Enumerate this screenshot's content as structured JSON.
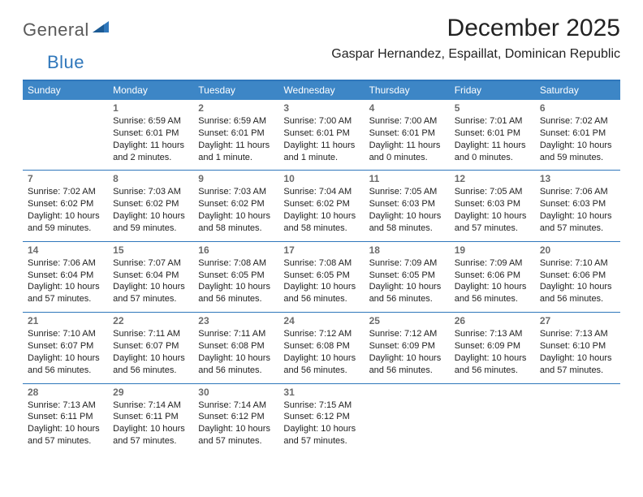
{
  "brand": {
    "word1": "General",
    "word2": "Blue"
  },
  "title": "December 2025",
  "location": "Gaspar Hernandez, Espaillat, Dominican Republic",
  "colors": {
    "header_bg": "#3d86c6",
    "header_text": "#ffffff",
    "rule": "#2f77bb",
    "daynum": "#6b6b6b",
    "body_text": "#222222",
    "logo_gray": "#5a5a5a",
    "logo_blue": "#2f77bb",
    "page_bg": "#ffffff"
  },
  "typography": {
    "month_title_pt": 30,
    "location_pt": 16,
    "dow_pt": 12,
    "daynum_pt": 12,
    "body_pt": 11,
    "logo_pt": 22
  },
  "days_of_week": [
    "Sunday",
    "Monday",
    "Tuesday",
    "Wednesday",
    "Thursday",
    "Friday",
    "Saturday"
  ],
  "weeks": [
    [
      null,
      {
        "n": "1",
        "sr": "Sunrise: 6:59 AM",
        "ss": "Sunset: 6:01 PM",
        "d1": "Daylight: 11 hours",
        "d2": "and 2 minutes."
      },
      {
        "n": "2",
        "sr": "Sunrise: 6:59 AM",
        "ss": "Sunset: 6:01 PM",
        "d1": "Daylight: 11 hours",
        "d2": "and 1 minute."
      },
      {
        "n": "3",
        "sr": "Sunrise: 7:00 AM",
        "ss": "Sunset: 6:01 PM",
        "d1": "Daylight: 11 hours",
        "d2": "and 1 minute."
      },
      {
        "n": "4",
        "sr": "Sunrise: 7:00 AM",
        "ss": "Sunset: 6:01 PM",
        "d1": "Daylight: 11 hours",
        "d2": "and 0 minutes."
      },
      {
        "n": "5",
        "sr": "Sunrise: 7:01 AM",
        "ss": "Sunset: 6:01 PM",
        "d1": "Daylight: 11 hours",
        "d2": "and 0 minutes."
      },
      {
        "n": "6",
        "sr": "Sunrise: 7:02 AM",
        "ss": "Sunset: 6:01 PM",
        "d1": "Daylight: 10 hours",
        "d2": "and 59 minutes."
      }
    ],
    [
      {
        "n": "7",
        "sr": "Sunrise: 7:02 AM",
        "ss": "Sunset: 6:02 PM",
        "d1": "Daylight: 10 hours",
        "d2": "and 59 minutes."
      },
      {
        "n": "8",
        "sr": "Sunrise: 7:03 AM",
        "ss": "Sunset: 6:02 PM",
        "d1": "Daylight: 10 hours",
        "d2": "and 59 minutes."
      },
      {
        "n": "9",
        "sr": "Sunrise: 7:03 AM",
        "ss": "Sunset: 6:02 PM",
        "d1": "Daylight: 10 hours",
        "d2": "and 58 minutes."
      },
      {
        "n": "10",
        "sr": "Sunrise: 7:04 AM",
        "ss": "Sunset: 6:02 PM",
        "d1": "Daylight: 10 hours",
        "d2": "and 58 minutes."
      },
      {
        "n": "11",
        "sr": "Sunrise: 7:05 AM",
        "ss": "Sunset: 6:03 PM",
        "d1": "Daylight: 10 hours",
        "d2": "and 58 minutes."
      },
      {
        "n": "12",
        "sr": "Sunrise: 7:05 AM",
        "ss": "Sunset: 6:03 PM",
        "d1": "Daylight: 10 hours",
        "d2": "and 57 minutes."
      },
      {
        "n": "13",
        "sr": "Sunrise: 7:06 AM",
        "ss": "Sunset: 6:03 PM",
        "d1": "Daylight: 10 hours",
        "d2": "and 57 minutes."
      }
    ],
    [
      {
        "n": "14",
        "sr": "Sunrise: 7:06 AM",
        "ss": "Sunset: 6:04 PM",
        "d1": "Daylight: 10 hours",
        "d2": "and 57 minutes."
      },
      {
        "n": "15",
        "sr": "Sunrise: 7:07 AM",
        "ss": "Sunset: 6:04 PM",
        "d1": "Daylight: 10 hours",
        "d2": "and 57 minutes."
      },
      {
        "n": "16",
        "sr": "Sunrise: 7:08 AM",
        "ss": "Sunset: 6:05 PM",
        "d1": "Daylight: 10 hours",
        "d2": "and 56 minutes."
      },
      {
        "n": "17",
        "sr": "Sunrise: 7:08 AM",
        "ss": "Sunset: 6:05 PM",
        "d1": "Daylight: 10 hours",
        "d2": "and 56 minutes."
      },
      {
        "n": "18",
        "sr": "Sunrise: 7:09 AM",
        "ss": "Sunset: 6:05 PM",
        "d1": "Daylight: 10 hours",
        "d2": "and 56 minutes."
      },
      {
        "n": "19",
        "sr": "Sunrise: 7:09 AM",
        "ss": "Sunset: 6:06 PM",
        "d1": "Daylight: 10 hours",
        "d2": "and 56 minutes."
      },
      {
        "n": "20",
        "sr": "Sunrise: 7:10 AM",
        "ss": "Sunset: 6:06 PM",
        "d1": "Daylight: 10 hours",
        "d2": "and 56 minutes."
      }
    ],
    [
      {
        "n": "21",
        "sr": "Sunrise: 7:10 AM",
        "ss": "Sunset: 6:07 PM",
        "d1": "Daylight: 10 hours",
        "d2": "and 56 minutes."
      },
      {
        "n": "22",
        "sr": "Sunrise: 7:11 AM",
        "ss": "Sunset: 6:07 PM",
        "d1": "Daylight: 10 hours",
        "d2": "and 56 minutes."
      },
      {
        "n": "23",
        "sr": "Sunrise: 7:11 AM",
        "ss": "Sunset: 6:08 PM",
        "d1": "Daylight: 10 hours",
        "d2": "and 56 minutes."
      },
      {
        "n": "24",
        "sr": "Sunrise: 7:12 AM",
        "ss": "Sunset: 6:08 PM",
        "d1": "Daylight: 10 hours",
        "d2": "and 56 minutes."
      },
      {
        "n": "25",
        "sr": "Sunrise: 7:12 AM",
        "ss": "Sunset: 6:09 PM",
        "d1": "Daylight: 10 hours",
        "d2": "and 56 minutes."
      },
      {
        "n": "26",
        "sr": "Sunrise: 7:13 AM",
        "ss": "Sunset: 6:09 PM",
        "d1": "Daylight: 10 hours",
        "d2": "and 56 minutes."
      },
      {
        "n": "27",
        "sr": "Sunrise: 7:13 AM",
        "ss": "Sunset: 6:10 PM",
        "d1": "Daylight: 10 hours",
        "d2": "and 57 minutes."
      }
    ],
    [
      {
        "n": "28",
        "sr": "Sunrise: 7:13 AM",
        "ss": "Sunset: 6:11 PM",
        "d1": "Daylight: 10 hours",
        "d2": "and 57 minutes."
      },
      {
        "n": "29",
        "sr": "Sunrise: 7:14 AM",
        "ss": "Sunset: 6:11 PM",
        "d1": "Daylight: 10 hours",
        "d2": "and 57 minutes."
      },
      {
        "n": "30",
        "sr": "Sunrise: 7:14 AM",
        "ss": "Sunset: 6:12 PM",
        "d1": "Daylight: 10 hours",
        "d2": "and 57 minutes."
      },
      {
        "n": "31",
        "sr": "Sunrise: 7:15 AM",
        "ss": "Sunset: 6:12 PM",
        "d1": "Daylight: 10 hours",
        "d2": "and 57 minutes."
      },
      null,
      null,
      null
    ]
  ]
}
